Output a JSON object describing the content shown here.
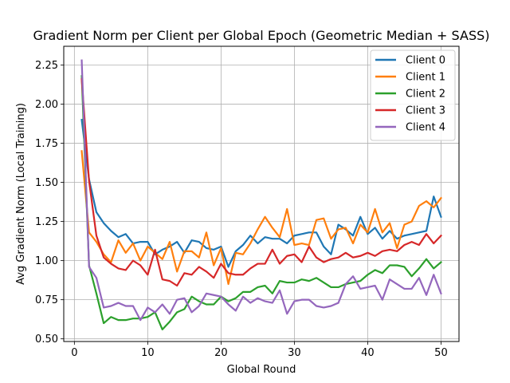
{
  "chart_data": {
    "type": "line",
    "title": "Gradient Norm per Client per Global Epoch (Geometric Median + SASS)",
    "xlabel": "Global Round",
    "ylabel": "Avg Gradient Norm (Local Training)",
    "xlim": [
      -1.45,
      52.45
    ],
    "ylim": [
      0.483,
      2.37
    ],
    "xticks": [
      0,
      10,
      20,
      30,
      40,
      50
    ],
    "yticks": [
      0.5,
      0.75,
      1.0,
      1.25,
      1.5,
      1.75,
      2.0,
      2.25
    ],
    "grid": true,
    "legend_position": "top-right",
    "x": [
      1,
      2,
      3,
      4,
      5,
      6,
      7,
      8,
      9,
      10,
      11,
      12,
      13,
      14,
      15,
      16,
      17,
      18,
      19,
      20,
      21,
      22,
      23,
      24,
      25,
      26,
      27,
      28,
      29,
      30,
      31,
      32,
      33,
      34,
      35,
      36,
      37,
      38,
      39,
      40,
      41,
      42,
      43,
      44,
      45,
      46,
      47,
      48,
      49,
      50
    ],
    "series": [
      {
        "name": "Client 0",
        "color": "#1f77b4",
        "values": [
          1.9,
          1.52,
          1.31,
          1.24,
          1.19,
          1.15,
          1.17,
          1.11,
          1.12,
          1.12,
          1.04,
          1.07,
          1.09,
          1.12,
          1.05,
          1.13,
          1.12,
          1.08,
          1.07,
          1.09,
          0.96,
          1.06,
          1.1,
          1.16,
          1.11,
          1.15,
          1.14,
          1.14,
          1.11,
          1.16,
          1.17,
          1.18,
          1.18,
          1.09,
          1.04,
          1.23,
          1.2,
          1.16,
          1.28,
          1.17,
          1.21,
          1.14,
          1.19,
          1.14,
          1.16,
          1.17,
          1.18,
          1.19,
          1.41,
          1.28
        ]
      },
      {
        "name": "Client 1",
        "color": "#ff7f0e",
        "values": [
          1.7,
          1.18,
          1.12,
          1.04,
          0.99,
          1.13,
          1.05,
          1.11,
          1.0,
          1.09,
          1.05,
          1.01,
          1.12,
          0.93,
          1.06,
          1.06,
          1.02,
          1.18,
          0.97,
          1.08,
          0.85,
          1.05,
          1.04,
          1.11,
          1.2,
          1.28,
          1.21,
          1.15,
          1.33,
          1.1,
          1.11,
          1.1,
          1.26,
          1.27,
          1.14,
          1.2,
          1.21,
          1.11,
          1.23,
          1.18,
          1.33,
          1.18,
          1.24,
          1.08,
          1.23,
          1.25,
          1.35,
          1.38,
          1.34,
          1.4
        ]
      },
      {
        "name": "Client 2",
        "color": "#2ca02c",
        "values": [
          2.18,
          0.97,
          0.79,
          0.6,
          0.64,
          0.62,
          0.62,
          0.63,
          0.63,
          0.64,
          0.67,
          0.56,
          0.61,
          0.67,
          0.69,
          0.77,
          0.74,
          0.72,
          0.72,
          0.77,
          0.74,
          0.76,
          0.8,
          0.8,
          0.83,
          0.84,
          0.79,
          0.87,
          0.86,
          0.86,
          0.88,
          0.87,
          0.89,
          0.86,
          0.83,
          0.83,
          0.85,
          0.86,
          0.87,
          0.91,
          0.94,
          0.92,
          0.97,
          0.97,
          0.96,
          0.9,
          0.95,
          1.01,
          0.95,
          0.99
        ]
      },
      {
        "name": "Client 3",
        "color": "#d62728",
        "values": [
          2.16,
          1.51,
          1.16,
          1.02,
          0.98,
          0.95,
          0.94,
          1.0,
          0.97,
          0.91,
          1.07,
          0.88,
          0.87,
          0.84,
          0.92,
          0.91,
          0.96,
          0.93,
          0.89,
          0.98,
          0.92,
          0.91,
          0.91,
          0.95,
          0.98,
          0.98,
          1.07,
          0.98,
          1.03,
          1.04,
          0.99,
          1.09,
          1.02,
          0.99,
          1.01,
          1.02,
          1.05,
          1.02,
          1.03,
          1.05,
          1.03,
          1.06,
          1.07,
          1.06,
          1.1,
          1.12,
          1.1,
          1.17,
          1.11,
          1.16
        ]
      },
      {
        "name": "Client 4",
        "color": "#9467bd",
        "values": [
          2.28,
          0.96,
          0.89,
          0.7,
          0.71,
          0.73,
          0.71,
          0.71,
          0.62,
          0.7,
          0.67,
          0.72,
          0.66,
          0.75,
          0.76,
          0.67,
          0.71,
          0.79,
          0.78,
          0.77,
          0.72,
          0.68,
          0.77,
          0.73,
          0.76,
          0.74,
          0.73,
          0.81,
          0.66,
          0.74,
          0.75,
          0.75,
          0.71,
          0.7,
          0.71,
          0.73,
          0.85,
          0.9,
          0.82,
          0.83,
          0.84,
          0.75,
          0.88,
          0.85,
          0.82,
          0.82,
          0.89,
          0.78,
          0.91,
          0.79
        ]
      }
    ]
  }
}
